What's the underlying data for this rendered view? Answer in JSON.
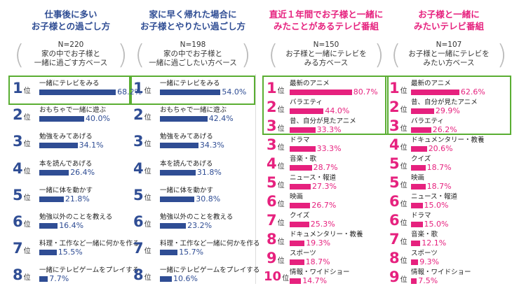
{
  "colors": {
    "blue": "#2f4d94",
    "pink": "#e6217e",
    "highlight": "#5aae32",
    "blue_text": "#2f4d94",
    "pink_text": "#e6217e"
  },
  "chart_data": [
    {
      "type": "bar",
      "title": "仕事後に多い お子様との過ごし方",
      "title_lines": [
        "仕事後に多い",
        "お子様との過ごし方"
      ],
      "base_lines": [
        "N=220",
        "家の中でお子様と",
        "一緒に過ごす方ベース"
      ],
      "rank_suffix": "位",
      "color": "blue",
      "xlim": [
        0,
        100
      ],
      "categories": [
        "一緒にテレビをみる",
        "おもちゃで一緒に遊ぶ",
        "勉強をみてあげる",
        "本を読んであげる",
        "一緒に体を動かす",
        "勉強以外のことを教える",
        "料理・工作など一緒に何かを作る",
        "一緒にテレビゲームをプレイする"
      ],
      "values": [
        68.2,
        40.0,
        34.1,
        26.4,
        21.8,
        16.4,
        15.5,
        7.7
      ],
      "value_labels": [
        "68.2%",
        "40.0%",
        "34.1%",
        "26.4%",
        "21.8%",
        "16.4%",
        "15.5%",
        "7.7%"
      ],
      "ranks": [
        "1",
        "2",
        "3",
        "4",
        "5",
        "6",
        "7",
        "8"
      ],
      "highlight_count": 1
    },
    {
      "type": "bar",
      "title": "家に早く帰れた場合に お子様とやりたい過ごし方",
      "title_lines": [
        "家に早く帰れた場合に",
        "お子様とやりたい過ごし方"
      ],
      "base_lines": [
        "N=198",
        "家の中でお子様と",
        "一緒に過ごしたい方ベース"
      ],
      "rank_suffix": "位",
      "color": "blue",
      "xlim": [
        0,
        100
      ],
      "categories": [
        "一緒にテレビをみる",
        "おもちゃで一緒に遊ぶ",
        "勉強をみてあげる",
        "本を読んであげる",
        "一緒に体を動かす",
        "勉強以外のことを教える",
        "料理・工作など一緒に何かを作る",
        "一緒にテレビゲームをプレイする"
      ],
      "values": [
        54.0,
        42.4,
        34.3,
        31.8,
        30.8,
        23.2,
        15.7,
        10.6
      ],
      "value_labels": [
        "54.0%",
        "42.4%",
        "34.3%",
        "31.8%",
        "30.8%",
        "23.2%",
        "15.7%",
        "10.6%"
      ],
      "ranks": [
        "1",
        "2",
        "3",
        "4",
        "5",
        "6",
        "7",
        "8"
      ],
      "highlight_count": 1
    },
    {
      "type": "bar",
      "title": "直近１年間でお子様と一緒に みたことがあるテレビ番組",
      "title_lines": [
        "直近１年間でお子様と一緒に",
        "みたことがあるテレビ番組"
      ],
      "base_lines": [
        "N=150",
        "お子様と一緒にテレビを",
        "みる方ベース"
      ],
      "rank_suffix": "位",
      "color": "pink",
      "xlim": [
        0,
        100
      ],
      "categories": [
        "最新のアニメ",
        "バラエティ",
        "昔、自分が見たアニメ",
        "ドラマ",
        "音楽・歌",
        "ニュース・報道",
        "映画",
        "クイズ",
        "ドキュメンタリー・教養",
        "スポーツ",
        "情報・ワイドショー"
      ],
      "values": [
        80.7,
        44.0,
        33.3,
        33.3,
        28.7,
        27.3,
        26.7,
        25.3,
        19.3,
        18.7,
        14.7
      ],
      "value_labels": [
        "80.7%",
        "44.0%",
        "33.3%",
        "33.3%",
        "28.7%",
        "27.3%",
        "26.7%",
        "25.3%",
        "19.3%",
        "18.7%",
        "14.7%"
      ],
      "ranks": [
        "1",
        "2",
        "3",
        "3",
        "4",
        "5",
        "6",
        "7",
        "8",
        "9",
        "10"
      ],
      "highlight_count": 3
    },
    {
      "type": "bar",
      "title": "お子様と一緒に みたいテレビ番組",
      "title_lines": [
        "お子様と一緒に",
        "みたいテレビ番組"
      ],
      "base_lines": [
        "N=107",
        "お子様と一緒にテレビを",
        "みたい方ベース"
      ],
      "rank_suffix": "位",
      "color": "pink",
      "xlim": [
        0,
        100
      ],
      "categories": [
        "最新のアニメ",
        "昔、自分が見たアニメ",
        "バラエティ",
        "ドキュメンタリー・教養",
        "クイズ",
        "映画",
        "ニュース・報道",
        "ドラマ",
        "音楽・歌",
        "スポーツ",
        "情報・ワイドショー"
      ],
      "values": [
        62.6,
        29.9,
        26.2,
        20.6,
        18.7,
        18.7,
        15.0,
        15.0,
        12.1,
        9.3,
        7.5
      ],
      "value_labels": [
        "62.6%",
        "29.9%",
        "26.2%",
        "20.6%",
        "18.7%",
        "18.7%",
        "15.0%",
        "15.0%",
        "12.1%",
        "9.3%",
        "7.5%"
      ],
      "ranks": [
        "1",
        "2",
        "3",
        "4",
        "5",
        "5",
        "6",
        "6",
        "7",
        "8",
        "9"
      ],
      "highlight_count": 3
    }
  ]
}
